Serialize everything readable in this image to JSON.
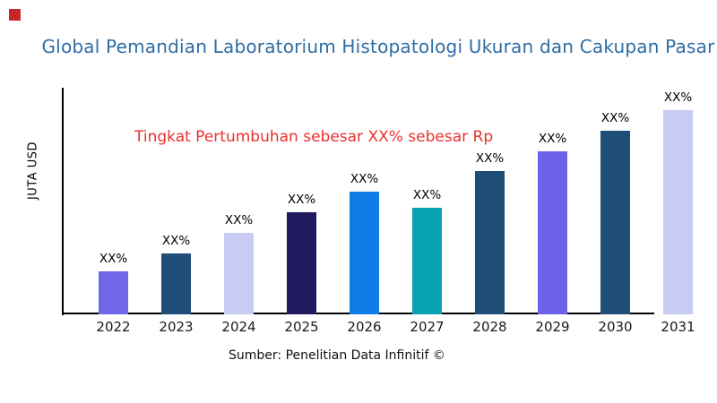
{
  "page": {
    "logo_color": "#c62828",
    "title_color": "#2e6da4",
    "annotation_color": "#e8312e",
    "axis_color": "#000000",
    "source": "Sumber: Penelitian Data Infinitif ©"
  },
  "chart_data": {
    "type": "bar",
    "title": "Global Pemandian Laboratorium Histopatologi Ukuran dan Cakupan Pasar",
    "ylabel": "JUTA USD",
    "xlabel": "",
    "annotation": {
      "text": "Tingkat Pertumbuhan sebesar XX% sebesar Rp",
      "color": "#e8312e"
    },
    "categories": [
      "2022",
      "2023",
      "2024",
      "2025",
      "2026",
      "2027",
      "2028",
      "2029",
      "2030",
      "2031"
    ],
    "values": [
      21,
      30,
      40,
      50,
      60,
      52,
      70,
      80,
      90,
      100
    ],
    "values_unit": "relative bar height, percent of tallest bar (actual values masked as XX%)",
    "bar_labels": [
      "XX%",
      "XX%",
      "XX%",
      "XX%",
      "XX%",
      "XX%",
      "XX%",
      "XX%",
      "XX%",
      "XX%"
    ],
    "bar_colors": [
      "#7165e8",
      "#1f4e78",
      "#c9ccf2",
      "#1f1a5e",
      "#0f7de8",
      "#0aa2b5",
      "#1f4e78",
      "#6d61ea",
      "#1f4e78",
      "#c9ccf2"
    ],
    "ylim": [
      0,
      100
    ],
    "grid": false,
    "legend": false,
    "source": "Sumber: Penelitian Data Infinitif ©"
  }
}
